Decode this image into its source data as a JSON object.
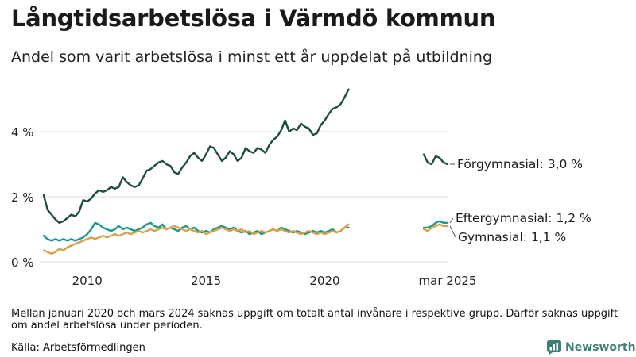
{
  "title": "Långtidsarbetslösa i Värmdö kommun",
  "subtitle": "Andel som varit arbetslösa i minst ett år uppdelat på utbildning",
  "note": "Mellan januari 2020 och mars 2024 saknas uppgift om totalt antal invånare i respektive grupp. Därför saknas uppgift om andel arbetslösa under perioden.",
  "source": "Källa: Arbetsförmedlingen",
  "brand": "Newsworthy",
  "chart_data": {
    "type": "line",
    "title": "Långtidsarbetslösa i Värmdö kommun",
    "subtitle": "Andel som varit arbetslösa i minst ett år uppdelat på utbildning",
    "xlabel": "",
    "ylabel": "",
    "ylim": [
      0,
      5.5
    ],
    "yticks": [
      0,
      2,
      4
    ],
    "ytick_labels": [
      "0 %",
      "2 %",
      "4 %"
    ],
    "xticks": [
      2010,
      2015,
      2020,
      2025.17
    ],
    "xtick_labels": [
      "2010",
      "2015",
      "2020",
      "mar 2025"
    ],
    "grid": true,
    "legend": "direct labels at right end",
    "series": [
      {
        "name": "Förgymnasial",
        "end_label": "Förgymnasial: 3,0 %",
        "color": "#1d4d43",
        "segments": [
          [
            [
              2008.17,
              2.05
            ],
            [
              2008.33,
              1.6
            ],
            [
              2008.5,
              1.45
            ],
            [
              2008.67,
              1.3
            ],
            [
              2008.83,
              1.2
            ],
            [
              2009.0,
              1.25
            ],
            [
              2009.17,
              1.35
            ],
            [
              2009.33,
              1.45
            ],
            [
              2009.5,
              1.4
            ],
            [
              2009.67,
              1.55
            ],
            [
              2009.83,
              1.9
            ],
            [
              2010.0,
              1.85
            ],
            [
              2010.17,
              1.95
            ],
            [
              2010.33,
              2.1
            ],
            [
              2010.5,
              2.2
            ],
            [
              2010.67,
              2.15
            ],
            [
              2010.83,
              2.2
            ],
            [
              2011.0,
              2.3
            ],
            [
              2011.17,
              2.25
            ],
            [
              2011.33,
              2.3
            ],
            [
              2011.5,
              2.6
            ],
            [
              2011.67,
              2.45
            ],
            [
              2011.83,
              2.35
            ],
            [
              2012.0,
              2.3
            ],
            [
              2012.17,
              2.35
            ],
            [
              2012.33,
              2.55
            ],
            [
              2012.5,
              2.8
            ],
            [
              2012.67,
              2.85
            ],
            [
              2012.83,
              2.95
            ],
            [
              2013.0,
              3.05
            ],
            [
              2013.17,
              3.1
            ],
            [
              2013.33,
              3.0
            ],
            [
              2013.5,
              2.95
            ],
            [
              2013.67,
              2.75
            ],
            [
              2013.83,
              2.7
            ],
            [
              2014.0,
              2.9
            ],
            [
              2014.17,
              3.05
            ],
            [
              2014.33,
              3.25
            ],
            [
              2014.5,
              3.35
            ],
            [
              2014.67,
              3.2
            ],
            [
              2014.83,
              3.1
            ],
            [
              2015.0,
              3.3
            ],
            [
              2015.17,
              3.55
            ],
            [
              2015.33,
              3.5
            ],
            [
              2015.5,
              3.3
            ],
            [
              2015.67,
              3.1
            ],
            [
              2015.83,
              3.2
            ],
            [
              2016.0,
              3.4
            ],
            [
              2016.17,
              3.3
            ],
            [
              2016.33,
              3.1
            ],
            [
              2016.5,
              3.2
            ],
            [
              2016.67,
              3.5
            ],
            [
              2016.83,
              3.4
            ],
            [
              2017.0,
              3.35
            ],
            [
              2017.17,
              3.5
            ],
            [
              2017.33,
              3.45
            ],
            [
              2017.5,
              3.35
            ],
            [
              2017.67,
              3.6
            ],
            [
              2017.83,
              3.75
            ],
            [
              2018.0,
              3.85
            ],
            [
              2018.17,
              4.05
            ],
            [
              2018.33,
              4.35
            ],
            [
              2018.5,
              4.0
            ],
            [
              2018.67,
              4.1
            ],
            [
              2018.83,
              4.05
            ],
            [
              2019.0,
              4.25
            ],
            [
              2019.17,
              4.15
            ],
            [
              2019.33,
              4.1
            ],
            [
              2019.5,
              3.9
            ],
            [
              2019.67,
              3.95
            ],
            [
              2019.83,
              4.2
            ],
            [
              2020.0,
              4.35
            ],
            [
              2020.17,
              4.55
            ],
            [
              2020.33,
              4.7
            ],
            [
              2020.5,
              4.75
            ],
            [
              2020.67,
              4.85
            ],
            [
              2020.83,
              5.05
            ],
            [
              2021.0,
              5.3
            ]
          ],
          [
            [
              2024.17,
              3.3
            ],
            [
              2024.33,
              3.05
            ],
            [
              2024.5,
              3.0
            ],
            [
              2024.67,
              3.25
            ],
            [
              2024.83,
              3.2
            ],
            [
              2025.0,
              3.05
            ],
            [
              2025.17,
              3.0
            ]
          ]
        ]
      },
      {
        "name": "Eftergymnasial",
        "end_label": "Eftergymnasial: 1,2 %",
        "color": "#1a9a8a",
        "segments": [
          [
            [
              2008.17,
              0.8
            ],
            [
              2008.33,
              0.7
            ],
            [
              2008.5,
              0.65
            ],
            [
              2008.67,
              0.7
            ],
            [
              2008.83,
              0.65
            ],
            [
              2009.0,
              0.7
            ],
            [
              2009.17,
              0.65
            ],
            [
              2009.33,
              0.7
            ],
            [
              2009.5,
              0.65
            ],
            [
              2009.67,
              0.7
            ],
            [
              2009.83,
              0.75
            ],
            [
              2010.0,
              0.85
            ],
            [
              2010.17,
              1.0
            ],
            [
              2010.33,
              1.2
            ],
            [
              2010.5,
              1.15
            ],
            [
              2010.67,
              1.05
            ],
            [
              2010.83,
              1.0
            ],
            [
              2011.0,
              0.95
            ],
            [
              2011.17,
              1.0
            ],
            [
              2011.33,
              1.1
            ],
            [
              2011.5,
              1.0
            ],
            [
              2011.67,
              1.05
            ],
            [
              2011.83,
              1.0
            ],
            [
              2012.0,
              0.95
            ],
            [
              2012.17,
              1.0
            ],
            [
              2012.33,
              1.05
            ],
            [
              2012.5,
              1.15
            ],
            [
              2012.67,
              1.2
            ],
            [
              2012.83,
              1.1
            ],
            [
              2013.0,
              1.05
            ],
            [
              2013.17,
              1.15
            ],
            [
              2013.33,
              1.0
            ],
            [
              2013.5,
              1.05
            ],
            [
              2013.67,
              1.0
            ],
            [
              2013.83,
              0.95
            ],
            [
              2014.0,
              1.05
            ],
            [
              2014.17,
              1.1
            ],
            [
              2014.33,
              1.0
            ],
            [
              2014.5,
              1.05
            ],
            [
              2014.67,
              0.95
            ],
            [
              2014.83,
              0.9
            ],
            [
              2015.0,
              0.95
            ],
            [
              2015.17,
              0.9
            ],
            [
              2015.33,
              1.0
            ],
            [
              2015.5,
              1.05
            ],
            [
              2015.67,
              1.1
            ],
            [
              2015.83,
              1.05
            ],
            [
              2016.0,
              1.0
            ],
            [
              2016.17,
              1.05
            ],
            [
              2016.33,
              0.95
            ],
            [
              2016.5,
              0.9
            ],
            [
              2016.67,
              0.95
            ],
            [
              2016.83,
              0.85
            ],
            [
              2017.0,
              0.9
            ],
            [
              2017.17,
              0.95
            ],
            [
              2017.33,
              0.85
            ],
            [
              2017.5,
              0.9
            ],
            [
              2017.67,
              0.95
            ],
            [
              2017.83,
              1.0
            ],
            [
              2018.0,
              0.95
            ],
            [
              2018.17,
              1.05
            ],
            [
              2018.33,
              1.0
            ],
            [
              2018.5,
              0.95
            ],
            [
              2018.67,
              0.9
            ],
            [
              2018.83,
              0.95
            ],
            [
              2019.0,
              0.9
            ],
            [
              2019.17,
              0.85
            ],
            [
              2019.33,
              0.9
            ],
            [
              2019.5,
              0.95
            ],
            [
              2019.67,
              0.9
            ],
            [
              2019.83,
              0.95
            ],
            [
              2020.0,
              0.9
            ],
            [
              2020.17,
              0.95
            ],
            [
              2020.33,
              1.0
            ],
            [
              2020.5,
              0.9
            ],
            [
              2020.67,
              0.95
            ],
            [
              2020.83,
              1.05
            ],
            [
              2021.0,
              1.05
            ]
          ],
          [
            [
              2024.17,
              1.05
            ],
            [
              2024.33,
              1.05
            ],
            [
              2024.5,
              1.1
            ],
            [
              2024.67,
              1.2
            ],
            [
              2024.83,
              1.25
            ],
            [
              2025.0,
              1.2
            ],
            [
              2025.17,
              1.2
            ]
          ]
        ]
      },
      {
        "name": "Gymnasial",
        "end_label": "Gymnasial: 1,1 %",
        "color": "#d9a24a",
        "segments": [
          [
            [
              2008.17,
              0.35
            ],
            [
              2008.33,
              0.3
            ],
            [
              2008.5,
              0.25
            ],
            [
              2008.67,
              0.3
            ],
            [
              2008.83,
              0.4
            ],
            [
              2009.0,
              0.35
            ],
            [
              2009.17,
              0.45
            ],
            [
              2009.33,
              0.5
            ],
            [
              2009.5,
              0.55
            ],
            [
              2009.67,
              0.6
            ],
            [
              2009.83,
              0.65
            ],
            [
              2010.0,
              0.7
            ],
            [
              2010.17,
              0.75
            ],
            [
              2010.33,
              0.7
            ],
            [
              2010.5,
              0.75
            ],
            [
              2010.67,
              0.8
            ],
            [
              2010.83,
              0.75
            ],
            [
              2011.0,
              0.8
            ],
            [
              2011.17,
              0.85
            ],
            [
              2011.33,
              0.8
            ],
            [
              2011.5,
              0.85
            ],
            [
              2011.67,
              0.9
            ],
            [
              2011.83,
              0.85
            ],
            [
              2012.0,
              0.9
            ],
            [
              2012.17,
              0.95
            ],
            [
              2012.33,
              0.9
            ],
            [
              2012.5,
              0.95
            ],
            [
              2012.67,
              1.0
            ],
            [
              2012.83,
              0.95
            ],
            [
              2013.0,
              1.0
            ],
            [
              2013.17,
              1.05
            ],
            [
              2013.33,
              1.0
            ],
            [
              2013.5,
              1.05
            ],
            [
              2013.67,
              1.1
            ],
            [
              2013.83,
              1.05
            ],
            [
              2014.0,
              1.0
            ],
            [
              2014.17,
              0.95
            ],
            [
              2014.33,
              1.0
            ],
            [
              2014.5,
              0.95
            ],
            [
              2014.67,
              0.9
            ],
            [
              2014.83,
              0.95
            ],
            [
              2015.0,
              0.85
            ],
            [
              2015.17,
              0.9
            ],
            [
              2015.33,
              0.95
            ],
            [
              2015.5,
              1.0
            ],
            [
              2015.67,
              1.05
            ],
            [
              2015.83,
              1.0
            ],
            [
              2016.0,
              0.95
            ],
            [
              2016.17,
              1.0
            ],
            [
              2016.33,
              0.95
            ],
            [
              2016.5,
              1.0
            ],
            [
              2016.67,
              0.9
            ],
            [
              2016.83,
              0.95
            ],
            [
              2017.0,
              0.85
            ],
            [
              2017.17,
              0.9
            ],
            [
              2017.33,
              0.95
            ],
            [
              2017.5,
              0.9
            ],
            [
              2017.67,
              0.95
            ],
            [
              2017.83,
              1.0
            ],
            [
              2018.0,
              0.95
            ],
            [
              2018.17,
              1.0
            ],
            [
              2018.33,
              0.95
            ],
            [
              2018.5,
              0.9
            ],
            [
              2018.67,
              0.95
            ],
            [
              2018.83,
              0.9
            ],
            [
              2019.0,
              0.85
            ],
            [
              2019.17,
              0.9
            ],
            [
              2019.33,
              0.95
            ],
            [
              2019.5,
              0.9
            ],
            [
              2019.67,
              0.85
            ],
            [
              2019.83,
              0.9
            ],
            [
              2020.0,
              0.85
            ],
            [
              2020.17,
              0.9
            ],
            [
              2020.33,
              0.95
            ],
            [
              2020.5,
              0.9
            ],
            [
              2020.67,
              0.95
            ],
            [
              2020.83,
              1.05
            ],
            [
              2021.0,
              1.15
            ]
          ],
          [
            [
              2024.17,
              1.0
            ],
            [
              2024.33,
              0.95
            ],
            [
              2024.5,
              1.05
            ],
            [
              2024.67,
              1.1
            ],
            [
              2024.83,
              1.15
            ],
            [
              2025.0,
              1.1
            ],
            [
              2025.17,
              1.1
            ]
          ]
        ]
      }
    ]
  }
}
